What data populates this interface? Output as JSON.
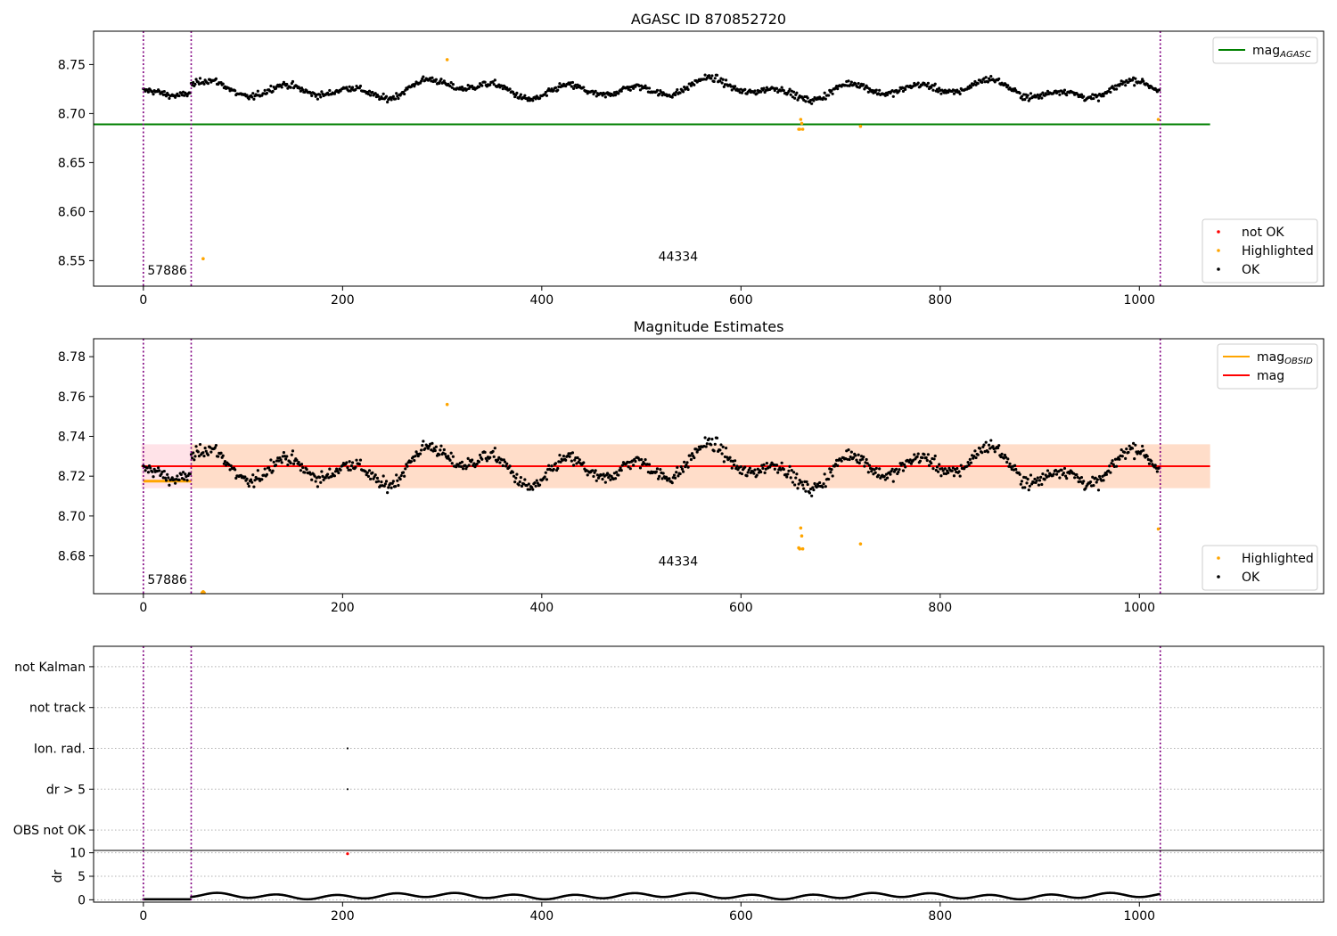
{
  "chart_data": [
    {
      "type": "scatter",
      "title": "AGASC ID 870852720",
      "xlabel": "",
      "ylabel": "",
      "xlim": [
        -50,
        1185
      ],
      "ylim": [
        8.524,
        8.784
      ],
      "xticks": [
        0,
        200,
        400,
        600,
        800,
        1000
      ],
      "yticks": [
        8.55,
        8.6,
        8.65,
        8.7,
        8.75
      ],
      "ytick_labels": [
        "8.55",
        "8.60",
        "8.65",
        "8.70",
        "8.75"
      ],
      "vlines": [
        0,
        48,
        1021
      ],
      "hline": {
        "name": "mag_AGASC",
        "value": 8.689,
        "x": [
          -50,
          1071
        ],
        "color": "#008000"
      },
      "text_annotations": [
        {
          "text": "57886",
          "x": 4,
          "y": 8.536
        },
        {
          "text": "44334",
          "x": 517,
          "y": 8.55
        }
      ],
      "legends": [
        {
          "position": "top-right",
          "entries": [
            {
              "label": "mag",
              "sub": "AGASC",
              "color": "#008000",
              "kind": "line"
            }
          ]
        },
        {
          "position": "bottom-right",
          "entries": [
            {
              "label": "not OK",
              "color": "#ff0000",
              "kind": "point"
            },
            {
              "label": "Highlighted",
              "color": "#ffa500",
              "kind": "point"
            },
            {
              "label": "OK",
              "color": "#000000",
              "kind": "point"
            }
          ]
        }
      ],
      "series": [
        {
          "name": "OK",
          "color": "#000000",
          "n": 1021,
          "mean": 8.7245,
          "amplitude": 0.016,
          "noise": 0.0035
        },
        {
          "name": "Highlighted",
          "color": "#ffa500",
          "x": [
            60,
            305,
            658,
            659,
            660,
            661,
            662,
            720,
            1019
          ],
          "y": [
            8.552,
            8.755,
            8.684,
            8.684,
            8.694,
            8.69,
            8.684,
            8.687,
            8.694
          ]
        }
      ]
    },
    {
      "type": "scatter",
      "title": "Magnitude Estimates",
      "xlabel": "",
      "ylabel": "",
      "xlim": [
        -50,
        1185
      ],
      "ylim": [
        8.661,
        8.789
      ],
      "xticks": [
        0,
        200,
        400,
        600,
        800,
        1000
      ],
      "yticks": [
        8.68,
        8.7,
        8.72,
        8.74,
        8.76,
        8.78
      ],
      "ytick_labels": [
        "8.68",
        "8.70",
        "8.72",
        "8.74",
        "8.76",
        "8.78"
      ],
      "vlines": [
        0,
        48,
        1021
      ],
      "band_outer": {
        "y": [
          8.714,
          8.736
        ],
        "x": [
          -2,
          1071
        ],
        "color": "#ffc0cb"
      },
      "band_inner": {
        "y": [
          8.714,
          8.736
        ],
        "x": [
          48,
          1071
        ],
        "color": "#ffdab9"
      },
      "mag_line": {
        "name": "mag",
        "value": 8.725,
        "x": [
          -2,
          1071
        ],
        "color": "#ff0000"
      },
      "obsid_line": {
        "name": "mag_OBSID",
        "value": 8.7175,
        "x": [
          0,
          48
        ],
        "color": "#ffa500"
      },
      "text_annotations": [
        {
          "text": "57886",
          "x": 4,
          "y": 8.666
        },
        {
          "text": "44334",
          "x": 517,
          "y": 8.675
        }
      ],
      "legends": [
        {
          "position": "top-right",
          "entries": [
            {
              "label": "mag",
              "sub": "OBSID",
              "color": "#ffa500",
              "kind": "line"
            },
            {
              "label": "mag",
              "sub": "",
              "color": "#ff0000",
              "kind": "line"
            }
          ]
        },
        {
          "position": "bottom-right",
          "entries": [
            {
              "label": "Highlighted",
              "color": "#ffa500",
              "kind": "point"
            },
            {
              "label": "OK",
              "color": "#000000",
              "kind": "point"
            }
          ]
        }
      ],
      "series": [
        {
          "name": "OK",
          "color": "#000000",
          "n": 1021,
          "mean": 8.7245,
          "amplitude": 0.016,
          "noise": 0.0035
        },
        {
          "name": "Highlighted",
          "color": "#ffa500",
          "x": [
            59,
            60,
            61,
            305,
            658,
            659,
            660,
            661,
            662,
            720,
            1019
          ],
          "y": [
            8.6615,
            8.662,
            8.6615,
            8.756,
            8.684,
            8.6835,
            8.694,
            8.69,
            8.6835,
            8.686,
            8.6935
          ]
        }
      ]
    },
    {
      "type": "scatter",
      "title": "",
      "xlabel": "",
      "ylabel": "",
      "xlim": [
        -50,
        1185
      ],
      "ylim": [
        0.5,
        5.5
      ],
      "categories": [
        "OBS not OK",
        "dr > 5",
        "Ion. rad.",
        "not track",
        "not Kalman"
      ],
      "vlines": [
        0,
        48,
        1021
      ],
      "series": [
        {
          "name": "flags",
          "color": "#000000",
          "x": [
            205,
            205
          ],
          "y": [
            "dr > 5",
            "Ion. rad."
          ]
        }
      ]
    },
    {
      "type": "scatter",
      "title": "",
      "xlabel": "",
      "ylabel": "dr",
      "xlim": [
        -50,
        1185
      ],
      "ylim": [
        -0.5,
        10.5
      ],
      "xticks": [
        0,
        200,
        400,
        600,
        800,
        1000
      ],
      "yticks": [
        0,
        5,
        10
      ],
      "ytick_labels": [
        "0",
        "5",
        "10"
      ],
      "vlines": [
        0,
        48,
        1021
      ],
      "series": [
        {
          "name": "OK",
          "color": "#000000",
          "n": 1021,
          "mean": 0.8,
          "amplitude": 0.45
        },
        {
          "name": "not OK",
          "color": "#ff0000",
          "x": [
            205
          ],
          "y": [
            9.8
          ]
        }
      ]
    }
  ]
}
